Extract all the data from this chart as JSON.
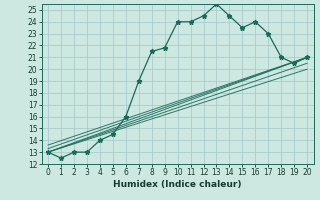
{
  "xlabel": "Humidex (Indice chaleur)",
  "xlim": [
    -0.5,
    20.5
  ],
  "ylim": [
    12,
    25.5
  ],
  "yticks": [
    12,
    13,
    14,
    15,
    16,
    17,
    18,
    19,
    20,
    21,
    22,
    23,
    24,
    25
  ],
  "xticks": [
    0,
    1,
    2,
    3,
    4,
    5,
    6,
    7,
    8,
    9,
    10,
    11,
    12,
    13,
    14,
    15,
    16,
    17,
    18,
    19,
    20
  ],
  "bg_color": "#cce8e0",
  "line_color": "#1a6b5a",
  "grid_color": "#aacccc",
  "main_x": [
    0,
    1,
    2,
    3,
    4,
    5,
    6,
    7,
    8,
    9,
    10,
    11,
    12,
    13,
    14,
    15,
    16,
    17,
    18,
    19,
    20
  ],
  "main_y": [
    13.0,
    12.5,
    13.0,
    13.0,
    14.0,
    14.5,
    16.0,
    19.0,
    21.5,
    21.8,
    24.0,
    24.0,
    24.5,
    25.5,
    24.5,
    23.5,
    24.0,
    23.0,
    21.0,
    20.5,
    21.0
  ],
  "diag_lines": [
    {
      "x": [
        0,
        20
      ],
      "y": [
        13.0,
        21.0
      ]
    },
    {
      "x": [
        0,
        20
      ],
      "y": [
        13.3,
        21.0
      ]
    },
    {
      "x": [
        0,
        20
      ],
      "y": [
        13.6,
        21.0
      ]
    },
    {
      "x": [
        0,
        20
      ],
      "y": [
        13.0,
        20.5
      ]
    },
    {
      "x": [
        0,
        20
      ],
      "y": [
        13.0,
        20.0
      ]
    }
  ]
}
